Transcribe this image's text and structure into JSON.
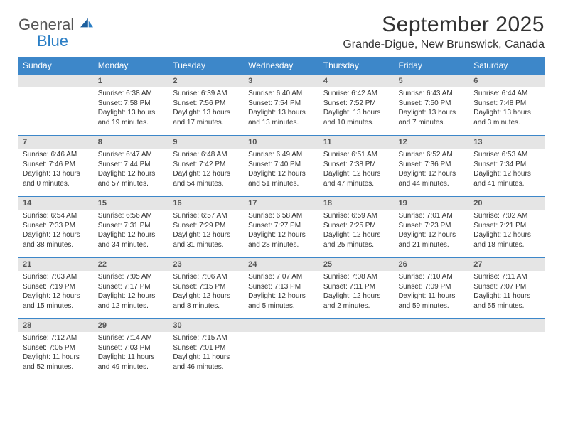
{
  "logo": {
    "word1": "General",
    "word2": "Blue"
  },
  "title": "September 2025",
  "location": "Grande-Digue, New Brunswick, Canada",
  "colors": {
    "header_bg": "#3d87c9",
    "header_text": "#ffffff",
    "daynum_bg": "#e5e5e5",
    "row_border": "#3d87c9",
    "logo_gray": "#555555",
    "logo_blue": "#2a7ec5",
    "body_text": "#333333"
  },
  "weekdays": [
    "Sunday",
    "Monday",
    "Tuesday",
    "Wednesday",
    "Thursday",
    "Friday",
    "Saturday"
  ],
  "weeks": [
    [
      null,
      {
        "n": "1",
        "sr": "6:38 AM",
        "ss": "7:58 PM",
        "dl": "13 hours and 19 minutes."
      },
      {
        "n": "2",
        "sr": "6:39 AM",
        "ss": "7:56 PM",
        "dl": "13 hours and 17 minutes."
      },
      {
        "n": "3",
        "sr": "6:40 AM",
        "ss": "7:54 PM",
        "dl": "13 hours and 13 minutes."
      },
      {
        "n": "4",
        "sr": "6:42 AM",
        "ss": "7:52 PM",
        "dl": "13 hours and 10 minutes."
      },
      {
        "n": "5",
        "sr": "6:43 AM",
        "ss": "7:50 PM",
        "dl": "13 hours and 7 minutes."
      },
      {
        "n": "6",
        "sr": "6:44 AM",
        "ss": "7:48 PM",
        "dl": "13 hours and 3 minutes."
      }
    ],
    [
      {
        "n": "7",
        "sr": "6:46 AM",
        "ss": "7:46 PM",
        "dl": "13 hours and 0 minutes."
      },
      {
        "n": "8",
        "sr": "6:47 AM",
        "ss": "7:44 PM",
        "dl": "12 hours and 57 minutes."
      },
      {
        "n": "9",
        "sr": "6:48 AM",
        "ss": "7:42 PM",
        "dl": "12 hours and 54 minutes."
      },
      {
        "n": "10",
        "sr": "6:49 AM",
        "ss": "7:40 PM",
        "dl": "12 hours and 51 minutes."
      },
      {
        "n": "11",
        "sr": "6:51 AM",
        "ss": "7:38 PM",
        "dl": "12 hours and 47 minutes."
      },
      {
        "n": "12",
        "sr": "6:52 AM",
        "ss": "7:36 PM",
        "dl": "12 hours and 44 minutes."
      },
      {
        "n": "13",
        "sr": "6:53 AM",
        "ss": "7:34 PM",
        "dl": "12 hours and 41 minutes."
      }
    ],
    [
      {
        "n": "14",
        "sr": "6:54 AM",
        "ss": "7:33 PM",
        "dl": "12 hours and 38 minutes."
      },
      {
        "n": "15",
        "sr": "6:56 AM",
        "ss": "7:31 PM",
        "dl": "12 hours and 34 minutes."
      },
      {
        "n": "16",
        "sr": "6:57 AM",
        "ss": "7:29 PM",
        "dl": "12 hours and 31 minutes."
      },
      {
        "n": "17",
        "sr": "6:58 AM",
        "ss": "7:27 PM",
        "dl": "12 hours and 28 minutes."
      },
      {
        "n": "18",
        "sr": "6:59 AM",
        "ss": "7:25 PM",
        "dl": "12 hours and 25 minutes."
      },
      {
        "n": "19",
        "sr": "7:01 AM",
        "ss": "7:23 PM",
        "dl": "12 hours and 21 minutes."
      },
      {
        "n": "20",
        "sr": "7:02 AM",
        "ss": "7:21 PM",
        "dl": "12 hours and 18 minutes."
      }
    ],
    [
      {
        "n": "21",
        "sr": "7:03 AM",
        "ss": "7:19 PM",
        "dl": "12 hours and 15 minutes."
      },
      {
        "n": "22",
        "sr": "7:05 AM",
        "ss": "7:17 PM",
        "dl": "12 hours and 12 minutes."
      },
      {
        "n": "23",
        "sr": "7:06 AM",
        "ss": "7:15 PM",
        "dl": "12 hours and 8 minutes."
      },
      {
        "n": "24",
        "sr": "7:07 AM",
        "ss": "7:13 PM",
        "dl": "12 hours and 5 minutes."
      },
      {
        "n": "25",
        "sr": "7:08 AM",
        "ss": "7:11 PM",
        "dl": "12 hours and 2 minutes."
      },
      {
        "n": "26",
        "sr": "7:10 AM",
        "ss": "7:09 PM",
        "dl": "11 hours and 59 minutes."
      },
      {
        "n": "27",
        "sr": "7:11 AM",
        "ss": "7:07 PM",
        "dl": "11 hours and 55 minutes."
      }
    ],
    [
      {
        "n": "28",
        "sr": "7:12 AM",
        "ss": "7:05 PM",
        "dl": "11 hours and 52 minutes."
      },
      {
        "n": "29",
        "sr": "7:14 AM",
        "ss": "7:03 PM",
        "dl": "11 hours and 49 minutes."
      },
      {
        "n": "30",
        "sr": "7:15 AM",
        "ss": "7:01 PM",
        "dl": "11 hours and 46 minutes."
      },
      null,
      null,
      null,
      null
    ]
  ],
  "labels": {
    "sunrise_prefix": "Sunrise: ",
    "sunset_prefix": "Sunset: ",
    "daylight_prefix": "Daylight: "
  }
}
